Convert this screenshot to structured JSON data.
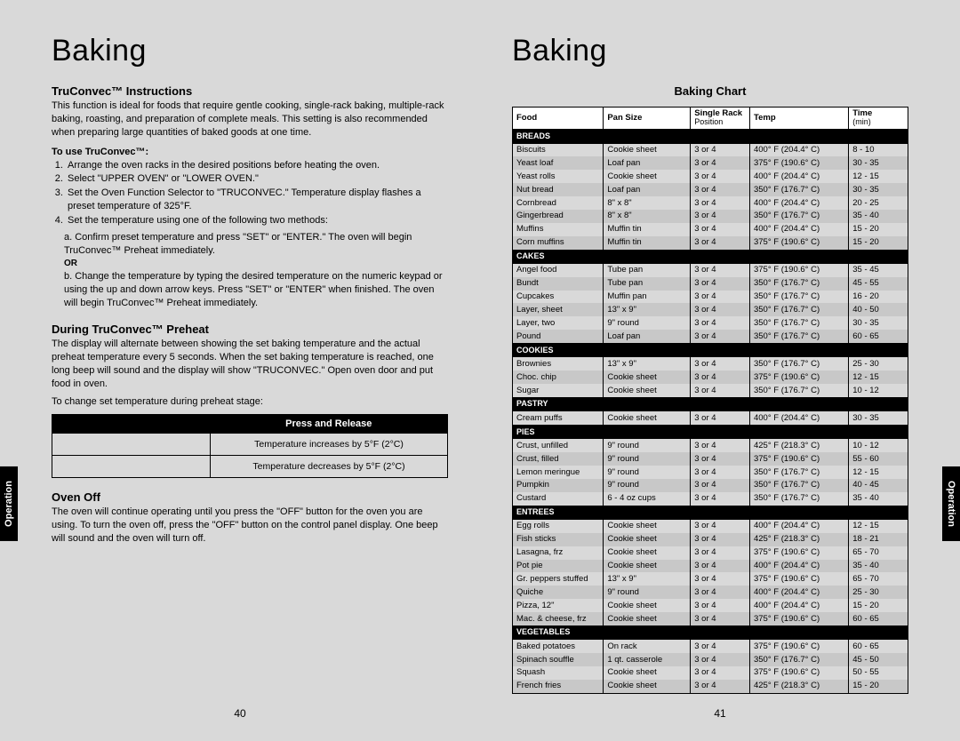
{
  "sideTab": "Operation",
  "left": {
    "title": "Baking",
    "s1": {
      "heading": "TruConvec™ Instructions",
      "intro": "This function is ideal for foods that require gentle cooking, single-rack baking, multiple-rack baking, roasting, and preparation of complete meals. This setting is also recommended when preparing large quantities of baked goods at one time.",
      "useLabel": "To use TruConvec™:",
      "steps": [
        "Arrange the oven racks in the desired positions before heating the oven.",
        "Select \"UPPER OVEN\" or \"LOWER OVEN.\"",
        "Set the Oven Function Selector to \"TRUCONVEC.\" Temperature display flashes a preset temperature of 325°F.",
        "Set the temperature using one of the following two methods:"
      ],
      "subA": "a. Confirm preset temperature and press \"SET\" or \"ENTER.\" The oven will begin TruConvec™ Preheat immediately.",
      "or": "OR",
      "subB": "b. Change the temperature by typing the desired temperature on the numeric keypad or using the up and down arrow keys. Press \"SET\" or \"ENTER\" when finished. The oven will begin TruConvec™ Preheat immediately."
    },
    "s2": {
      "heading": "During TruConvec™ Preheat",
      "body": "The display will alternate between showing the set baking temperature and the actual preheat temperature every 5 seconds. When the set baking temperature is reached, one long beep will sound and the display will show \"TRUCONVEC.\" Open oven door and put food in oven.",
      "changeLine": "To change set temperature during preheat stage:",
      "tableHead2": "Press and Release",
      "row1b": "Temperature increases by 5°F (2°C)",
      "row2b": "Temperature decreases by 5°F (2°C)"
    },
    "s3": {
      "heading": "Oven Off",
      "body": "The oven will continue operating until you press the \"OFF\" button for the oven you are using. To turn the oven off, press the \"OFF\" button on the control panel display. One beep will sound and the oven will turn off."
    },
    "pageNum": "40"
  },
  "right": {
    "title": "Baking",
    "chartHeading": "Baking Chart",
    "cols": {
      "food": "Food",
      "pan": "Pan Size",
      "posTop": "Single Rack",
      "posBot": "Position",
      "temp": "Temp",
      "timeTop": "Time",
      "timeBot": "(min)"
    },
    "pageNum": "41",
    "sections": [
      {
        "cat": "BREADS",
        "rows": [
          [
            "Biscuits",
            "Cookie sheet",
            "3 or 4",
            "400° F (204.4° C)",
            "8 - 10"
          ],
          [
            "Yeast loaf",
            "Loaf pan",
            "3 or 4",
            "375° F (190.6° C)",
            "30 - 35"
          ],
          [
            "Yeast rolls",
            "Cookie sheet",
            "3 or 4",
            "400° F (204.4° C)",
            "12 - 15"
          ],
          [
            "Nut bread",
            "Loaf pan",
            "3 or 4",
            "350° F (176.7° C)",
            "30 - 35"
          ],
          [
            "Cornbread",
            "8\" x 8\"",
            "3 or 4",
            "400° F (204.4° C)",
            "20 - 25"
          ],
          [
            "Gingerbread",
            "8\" x 8\"",
            "3 or 4",
            "350° F (176.7° C)",
            "35 - 40"
          ],
          [
            "Muffins",
            "Muffin tin",
            "3 or 4",
            "400° F (204.4° C)",
            "15 - 20"
          ],
          [
            "Corn muffins",
            "Muffin tin",
            "3 or 4",
            "375° F (190.6° C)",
            "15 - 20"
          ]
        ]
      },
      {
        "cat": "CAKES",
        "rows": [
          [
            "Angel food",
            "Tube pan",
            "3 or 4",
            "375° F (190.6° C)",
            "35 - 45"
          ],
          [
            "Bundt",
            "Tube pan",
            "3 or 4",
            "350° F (176.7° C)",
            "45 - 55"
          ],
          [
            "Cupcakes",
            "Muffin pan",
            "3 or 4",
            "350° F (176.7° C)",
            "16 - 20"
          ],
          [
            "Layer, sheet",
            "13\" x 9\"",
            "3 or 4",
            "350° F (176.7° C)",
            "40 - 50"
          ],
          [
            "Layer, two",
            "9\" round",
            "3 or 4",
            "350° F (176.7° C)",
            "30 - 35"
          ],
          [
            "Pound",
            "Loaf pan",
            "3 or 4",
            "350° F (176.7° C)",
            "60 - 65"
          ]
        ]
      },
      {
        "cat": "COOKIES",
        "rows": [
          [
            "Brownies",
            "13\" x 9\"",
            "3 or 4",
            "350° F (176.7° C)",
            "25 - 30"
          ],
          [
            "Choc. chip",
            "Cookie sheet",
            "3 or 4",
            "375° F (190.6° C)",
            "12 - 15"
          ],
          [
            "Sugar",
            "Cookie sheet",
            "3 or 4",
            "350° F (176.7° C)",
            "10 - 12"
          ]
        ]
      },
      {
        "cat": "PASTRY",
        "rows": [
          [
            "Cream puffs",
            "Cookie sheet",
            "3 or 4",
            "400° F (204.4° C)",
            "30 - 35"
          ]
        ]
      },
      {
        "cat": "PIES",
        "rows": [
          [
            "Crust, unfilled",
            "9\" round",
            "3 or 4",
            "425° F (218.3° C)",
            "10 - 12"
          ],
          [
            "Crust, filled",
            "9\" round",
            "3 or 4",
            "375° F (190.6° C)",
            "55 - 60"
          ],
          [
            "Lemon meringue",
            "9\" round",
            "3 or 4",
            "350° F (176.7° C)",
            "12 - 15"
          ],
          [
            "Pumpkin",
            "9\" round",
            "3 or 4",
            "350° F (176.7° C)",
            "40 - 45"
          ],
          [
            "Custard",
            "6 - 4 oz cups",
            "3 or 4",
            "350° F (176.7° C)",
            "35 - 40"
          ]
        ]
      },
      {
        "cat": "ENTREES",
        "rows": [
          [
            "Egg rolls",
            "Cookie sheet",
            "3 or 4",
            "400° F (204.4° C)",
            "12 - 15"
          ],
          [
            "Fish sticks",
            "Cookie sheet",
            "3 or 4",
            "425° F (218.3° C)",
            "18 - 21"
          ],
          [
            "Lasagna, frz",
            "Cookie sheet",
            "3 or 4",
            "375° F (190.6° C)",
            "65 - 70"
          ],
          [
            "Pot pie",
            "Cookie sheet",
            "3 or 4",
            "400° F (204.4° C)",
            "35 - 40"
          ],
          [
            "Gr. peppers stuffed",
            "13\" x 9\"",
            "3 or 4",
            "375° F (190.6° C)",
            "65 - 70"
          ],
          [
            "Quiche",
            "9\" round",
            "3 or 4",
            "400° F (204.4° C)",
            "25 - 30"
          ],
          [
            "Pizza, 12\"",
            "Cookie sheet",
            "3 or 4",
            "400° F (204.4° C)",
            "15 - 20"
          ],
          [
            "Mac. & cheese, frz",
            "Cookie sheet",
            "3 or 4",
            "375° F (190.6° C)",
            "60 - 65"
          ]
        ]
      },
      {
        "cat": "VEGETABLES",
        "rows": [
          [
            "Baked potatoes",
            "On rack",
            "3 or 4",
            "375° F (190.6° C)",
            "60 - 65"
          ],
          [
            "Spinach souffle",
            "1 qt. casserole",
            "3 or 4",
            "350° F (176.7° C)",
            "45 - 50"
          ],
          [
            "Squash",
            "Cookie sheet",
            "3 or 4",
            "375° F (190.6° C)",
            "50 - 55"
          ],
          [
            "French fries",
            "Cookie sheet",
            "3 or 4",
            "425° F (218.3° C)",
            "15 - 20"
          ]
        ]
      }
    ]
  }
}
